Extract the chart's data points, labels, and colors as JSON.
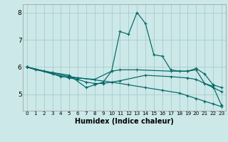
{
  "xlabel": "Humidex (Indice chaleur)",
  "background_color": "#cce8e8",
  "grid_color": "#aacccc",
  "line_color": "#006666",
  "xlim": [
    -0.5,
    23.5
  ],
  "ylim": [
    4.4,
    8.3
  ],
  "yticks": [
    5,
    6,
    7,
    8
  ],
  "xticks": [
    0,
    1,
    2,
    3,
    4,
    5,
    6,
    7,
    8,
    9,
    10,
    11,
    12,
    13,
    14,
    15,
    16,
    17,
    18,
    19,
    20,
    21,
    22,
    23
  ],
  "series": [
    {
      "x": [
        0,
        1,
        3,
        5,
        7,
        8,
        9,
        10,
        11,
        12,
        13,
        14,
        15,
        16,
        17,
        18,
        19,
        20,
        21,
        22,
        23
      ],
      "y": [
        6.0,
        5.9,
        5.8,
        5.7,
        5.25,
        5.35,
        5.45,
        5.85,
        7.3,
        7.2,
        8.0,
        7.6,
        6.45,
        6.4,
        5.9,
        5.85,
        5.85,
        5.9,
        5.4,
        5.3,
        4.6
      ]
    },
    {
      "x": [
        0,
        2,
        4,
        6,
        8,
        10,
        11,
        13,
        17,
        19,
        20,
        21,
        22,
        23
      ],
      "y": [
        6.0,
        5.85,
        5.65,
        5.6,
        5.55,
        5.85,
        5.9,
        5.9,
        5.85,
        5.85,
        5.95,
        5.75,
        5.35,
        5.25
      ]
    },
    {
      "x": [
        0,
        3,
        5,
        6,
        7,
        8,
        9,
        11,
        14,
        17,
        19,
        20,
        22,
        23
      ],
      "y": [
        6.0,
        5.75,
        5.6,
        5.55,
        5.45,
        5.4,
        5.4,
        5.5,
        5.7,
        5.65,
        5.6,
        5.55,
        5.25,
        5.1
      ]
    },
    {
      "x": [
        0,
        5,
        10,
        12,
        14,
        16,
        18,
        19,
        20,
        21,
        22,
        23
      ],
      "y": [
        6.0,
        5.65,
        5.45,
        5.35,
        5.25,
        5.15,
        5.05,
        4.95,
        4.85,
        4.75,
        4.65,
        4.55
      ]
    }
  ]
}
